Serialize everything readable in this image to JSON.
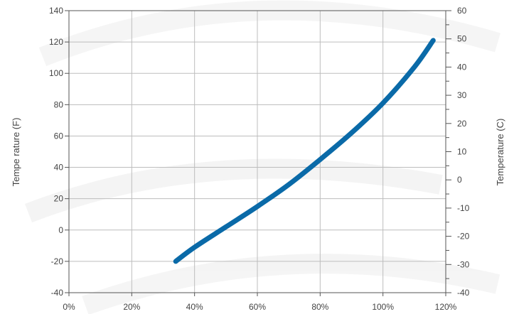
{
  "chart_data": {
    "type": "line",
    "title": "",
    "xlabel": "",
    "ylabel": "Tempe rature (F)",
    "y2label": "Temperature (C)",
    "xlim": [
      0,
      120
    ],
    "ylim": [
      -40,
      140
    ],
    "y2lim": [
      -40,
      60
    ],
    "x_ticks": [
      0,
      20,
      40,
      60,
      80,
      100,
      120
    ],
    "x_tick_labels": [
      "0%",
      "20%",
      "40%",
      "60%",
      "80%",
      "100%",
      "120%"
    ],
    "y_ticks": [
      -40,
      -20,
      0,
      20,
      40,
      60,
      80,
      100,
      120,
      140
    ],
    "y_tick_labels": [
      "-40",
      "-20",
      "0",
      "20",
      "40",
      "60",
      "80",
      "100",
      "120",
      "140"
    ],
    "y2_ticks": [
      -40,
      -30,
      -20,
      -10,
      0,
      10,
      20,
      30,
      40,
      50,
      60
    ],
    "y2_tick_labels": [
      "-40",
      "-30",
      "-20",
      "-10",
      "0",
      "10",
      "20",
      "30",
      "40",
      "50",
      "60"
    ],
    "grid": true,
    "legend": "none",
    "series": [
      {
        "color": "#0a6aa8",
        "x": [
          34,
          40,
          50,
          60,
          70,
          80,
          90,
          100,
          110,
          116
        ],
        "y": [
          -20,
          -11,
          2,
          15,
          29,
          45,
          62,
          81,
          104,
          121
        ]
      }
    ]
  }
}
